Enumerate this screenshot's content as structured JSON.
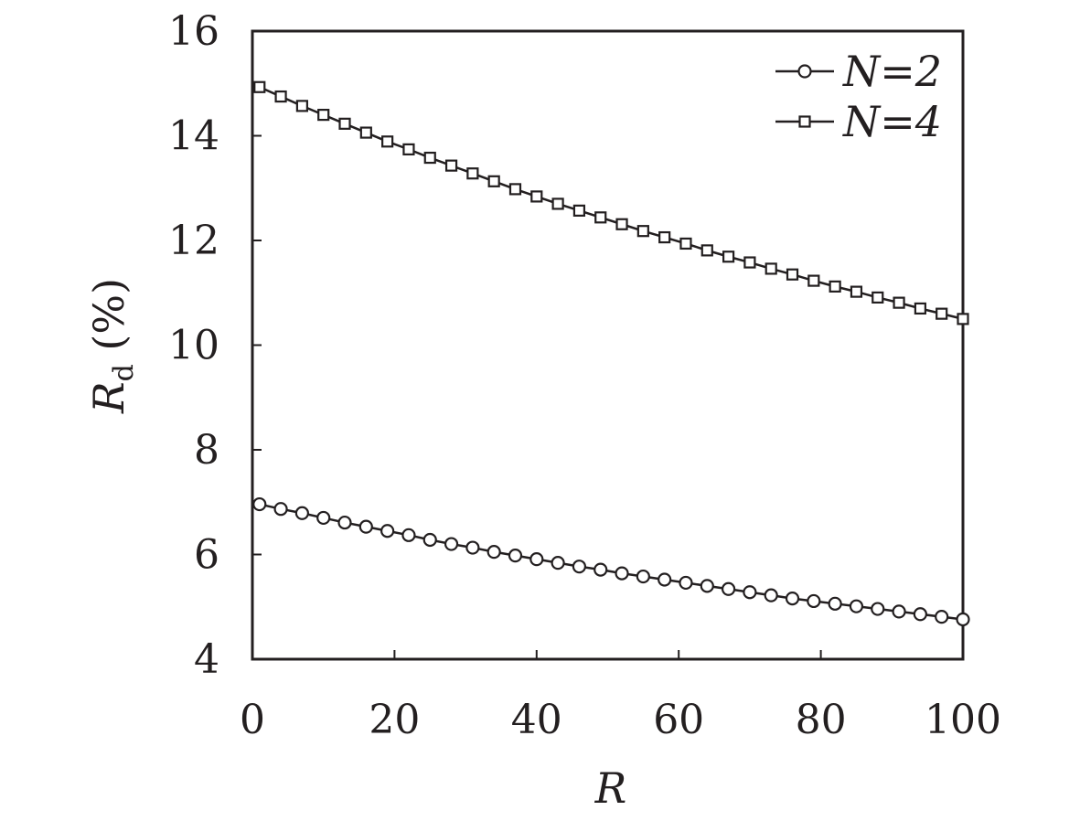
{
  "chart_data": {
    "type": "line",
    "xlabel": "R",
    "ylabel": {
      "main": "R",
      "sub": "d",
      "unit": " (%)"
    },
    "xlim": [
      0,
      100
    ],
    "ylim": [
      4,
      16
    ],
    "xticks": [
      0,
      20,
      40,
      60,
      80,
      100
    ],
    "yticks": [
      4,
      6,
      8,
      10,
      12,
      14,
      16
    ],
    "grid": false,
    "legend_position": "top-right",
    "colors": {
      "line": "#231f20",
      "frame": "#231f20"
    },
    "x": [
      1,
      4,
      7,
      10,
      13,
      16,
      19,
      22,
      25,
      28,
      31,
      34,
      37,
      40,
      43,
      46,
      49,
      52,
      55,
      58,
      61,
      64,
      67,
      70,
      73,
      76,
      79,
      82,
      85,
      88,
      91,
      94,
      97,
      100
    ],
    "series": [
      {
        "name": "N=2",
        "marker": "circle",
        "values": [
          6.96,
          6.87,
          6.79,
          6.7,
          6.61,
          6.53,
          6.45,
          6.37,
          6.28,
          6.2,
          6.13,
          6.05,
          5.98,
          5.91,
          5.84,
          5.77,
          5.71,
          5.64,
          5.58,
          5.52,
          5.46,
          5.4,
          5.34,
          5.28,
          5.22,
          5.16,
          5.11,
          5.06,
          5.01,
          4.96,
          4.91,
          4.86,
          4.81,
          4.76
        ]
      },
      {
        "name": "N=4",
        "marker": "square",
        "values": [
          14.93,
          14.75,
          14.57,
          14.4,
          14.23,
          14.06,
          13.89,
          13.74,
          13.58,
          13.43,
          13.28,
          13.13,
          12.98,
          12.84,
          12.7,
          12.57,
          12.44,
          12.31,
          12.18,
          12.06,
          11.94,
          11.81,
          11.69,
          11.58,
          11.46,
          11.35,
          11.23,
          11.12,
          11.02,
          10.91,
          10.81,
          10.7,
          10.6,
          10.5
        ]
      }
    ]
  }
}
